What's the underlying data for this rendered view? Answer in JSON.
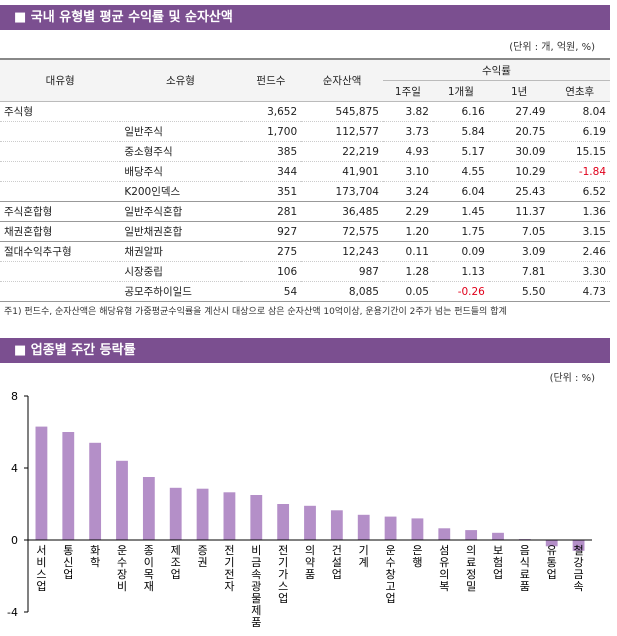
{
  "table_section": {
    "title": "■ 국내 유형별 평균 수익률 및 순자산액",
    "unit": "(단위 : 개, 억원, %)",
    "columns": {
      "type": "대유형",
      "subtype": "소유형",
      "fund_count": "펀드수",
      "net_assets": "순자산액",
      "returns": "수익률",
      "w1": "1주일",
      "m1": "1개월",
      "y1": "1년",
      "ytd": "연초후"
    },
    "rows": [
      {
        "type": "주식형",
        "fund_count": "3,652",
        "net_assets": "545,875",
        "w1": "3.82",
        "m1": "6.16",
        "y1": "27.49",
        "ytd": "8.04"
      },
      {
        "subtype": "일반주식",
        "fund_count": "1,700",
        "net_assets": "112,577",
        "w1": "3.73",
        "m1": "5.84",
        "y1": "20.75",
        "ytd": "6.19"
      },
      {
        "subtype": "중소형주식",
        "fund_count": "385",
        "net_assets": "22,219",
        "w1": "4.93",
        "m1": "5.17",
        "y1": "30.09",
        "ytd": "15.15"
      },
      {
        "subtype": "배당주식",
        "fund_count": "344",
        "net_assets": "41,901",
        "w1": "3.10",
        "m1": "4.55",
        "y1": "10.29",
        "ytd": "-1.84"
      },
      {
        "subtype": "K200인덱스",
        "fund_count": "351",
        "net_assets": "173,704",
        "w1": "3.24",
        "m1": "6.04",
        "y1": "25.43",
        "ytd": "6.52"
      },
      {
        "type": "주식혼합형",
        "subtype": "일반주식혼합",
        "fund_count": "281",
        "net_assets": "36,485",
        "w1": "2.29",
        "m1": "1.45",
        "y1": "11.37",
        "ytd": "1.36"
      },
      {
        "type": "채권혼합형",
        "subtype": "일반채권혼합",
        "fund_count": "927",
        "net_assets": "72,575",
        "w1": "1.20",
        "m1": "1.75",
        "y1": "7.05",
        "ytd": "3.15"
      },
      {
        "type": "절대수익추구형",
        "subtype": "채권알파",
        "fund_count": "275",
        "net_assets": "12,243",
        "w1": "0.11",
        "m1": "0.09",
        "y1": "3.09",
        "ytd": "2.46"
      },
      {
        "subtype": "시장중립",
        "fund_count": "106",
        "net_assets": "987",
        "w1": "1.28",
        "m1": "1.13",
        "y1": "7.81",
        "ytd": "3.30"
      },
      {
        "subtype": "공모주하이일드",
        "fund_count": "54",
        "net_assets": "8,085",
        "w1": "0.05",
        "m1": "-0.26",
        "y1": "5.50",
        "ytd": "4.73"
      }
    ],
    "note": "주1) 펀드수, 순자산액은 해당유형 가중평균수익률을 계산시 대상으로 삼은 순자산액 10억이상, 운용기간이 2주가 넘는 펀드들의 합계"
  },
  "chart_data": {
    "type": "bar",
    "title": "■ 업종별 주간 등락률",
    "unit": "(단위 : %)",
    "categories": [
      "서비스업",
      "통신업",
      "화학",
      "운수장비",
      "종이목재",
      "제조업",
      "증권",
      "전기전자",
      "비금속광물제품",
      "전기가스업",
      "의약품",
      "건설업",
      "기계",
      "운수창고업",
      "은행",
      "섬유의복",
      "의료정밀",
      "보험업",
      "음식료품",
      "유통업",
      "철강금속"
    ],
    "values": [
      6.3,
      6.0,
      5.4,
      4.4,
      3.5,
      2.9,
      2.85,
      2.65,
      2.5,
      2.0,
      1.9,
      1.65,
      1.4,
      1.3,
      1.2,
      0.65,
      0.55,
      0.4,
      0.05,
      -0.35,
      -0.6
    ],
    "color": "#b48fc8",
    "ylim": [
      -4,
      8
    ],
    "yticks": [
      -4,
      0,
      4,
      8
    ]
  }
}
